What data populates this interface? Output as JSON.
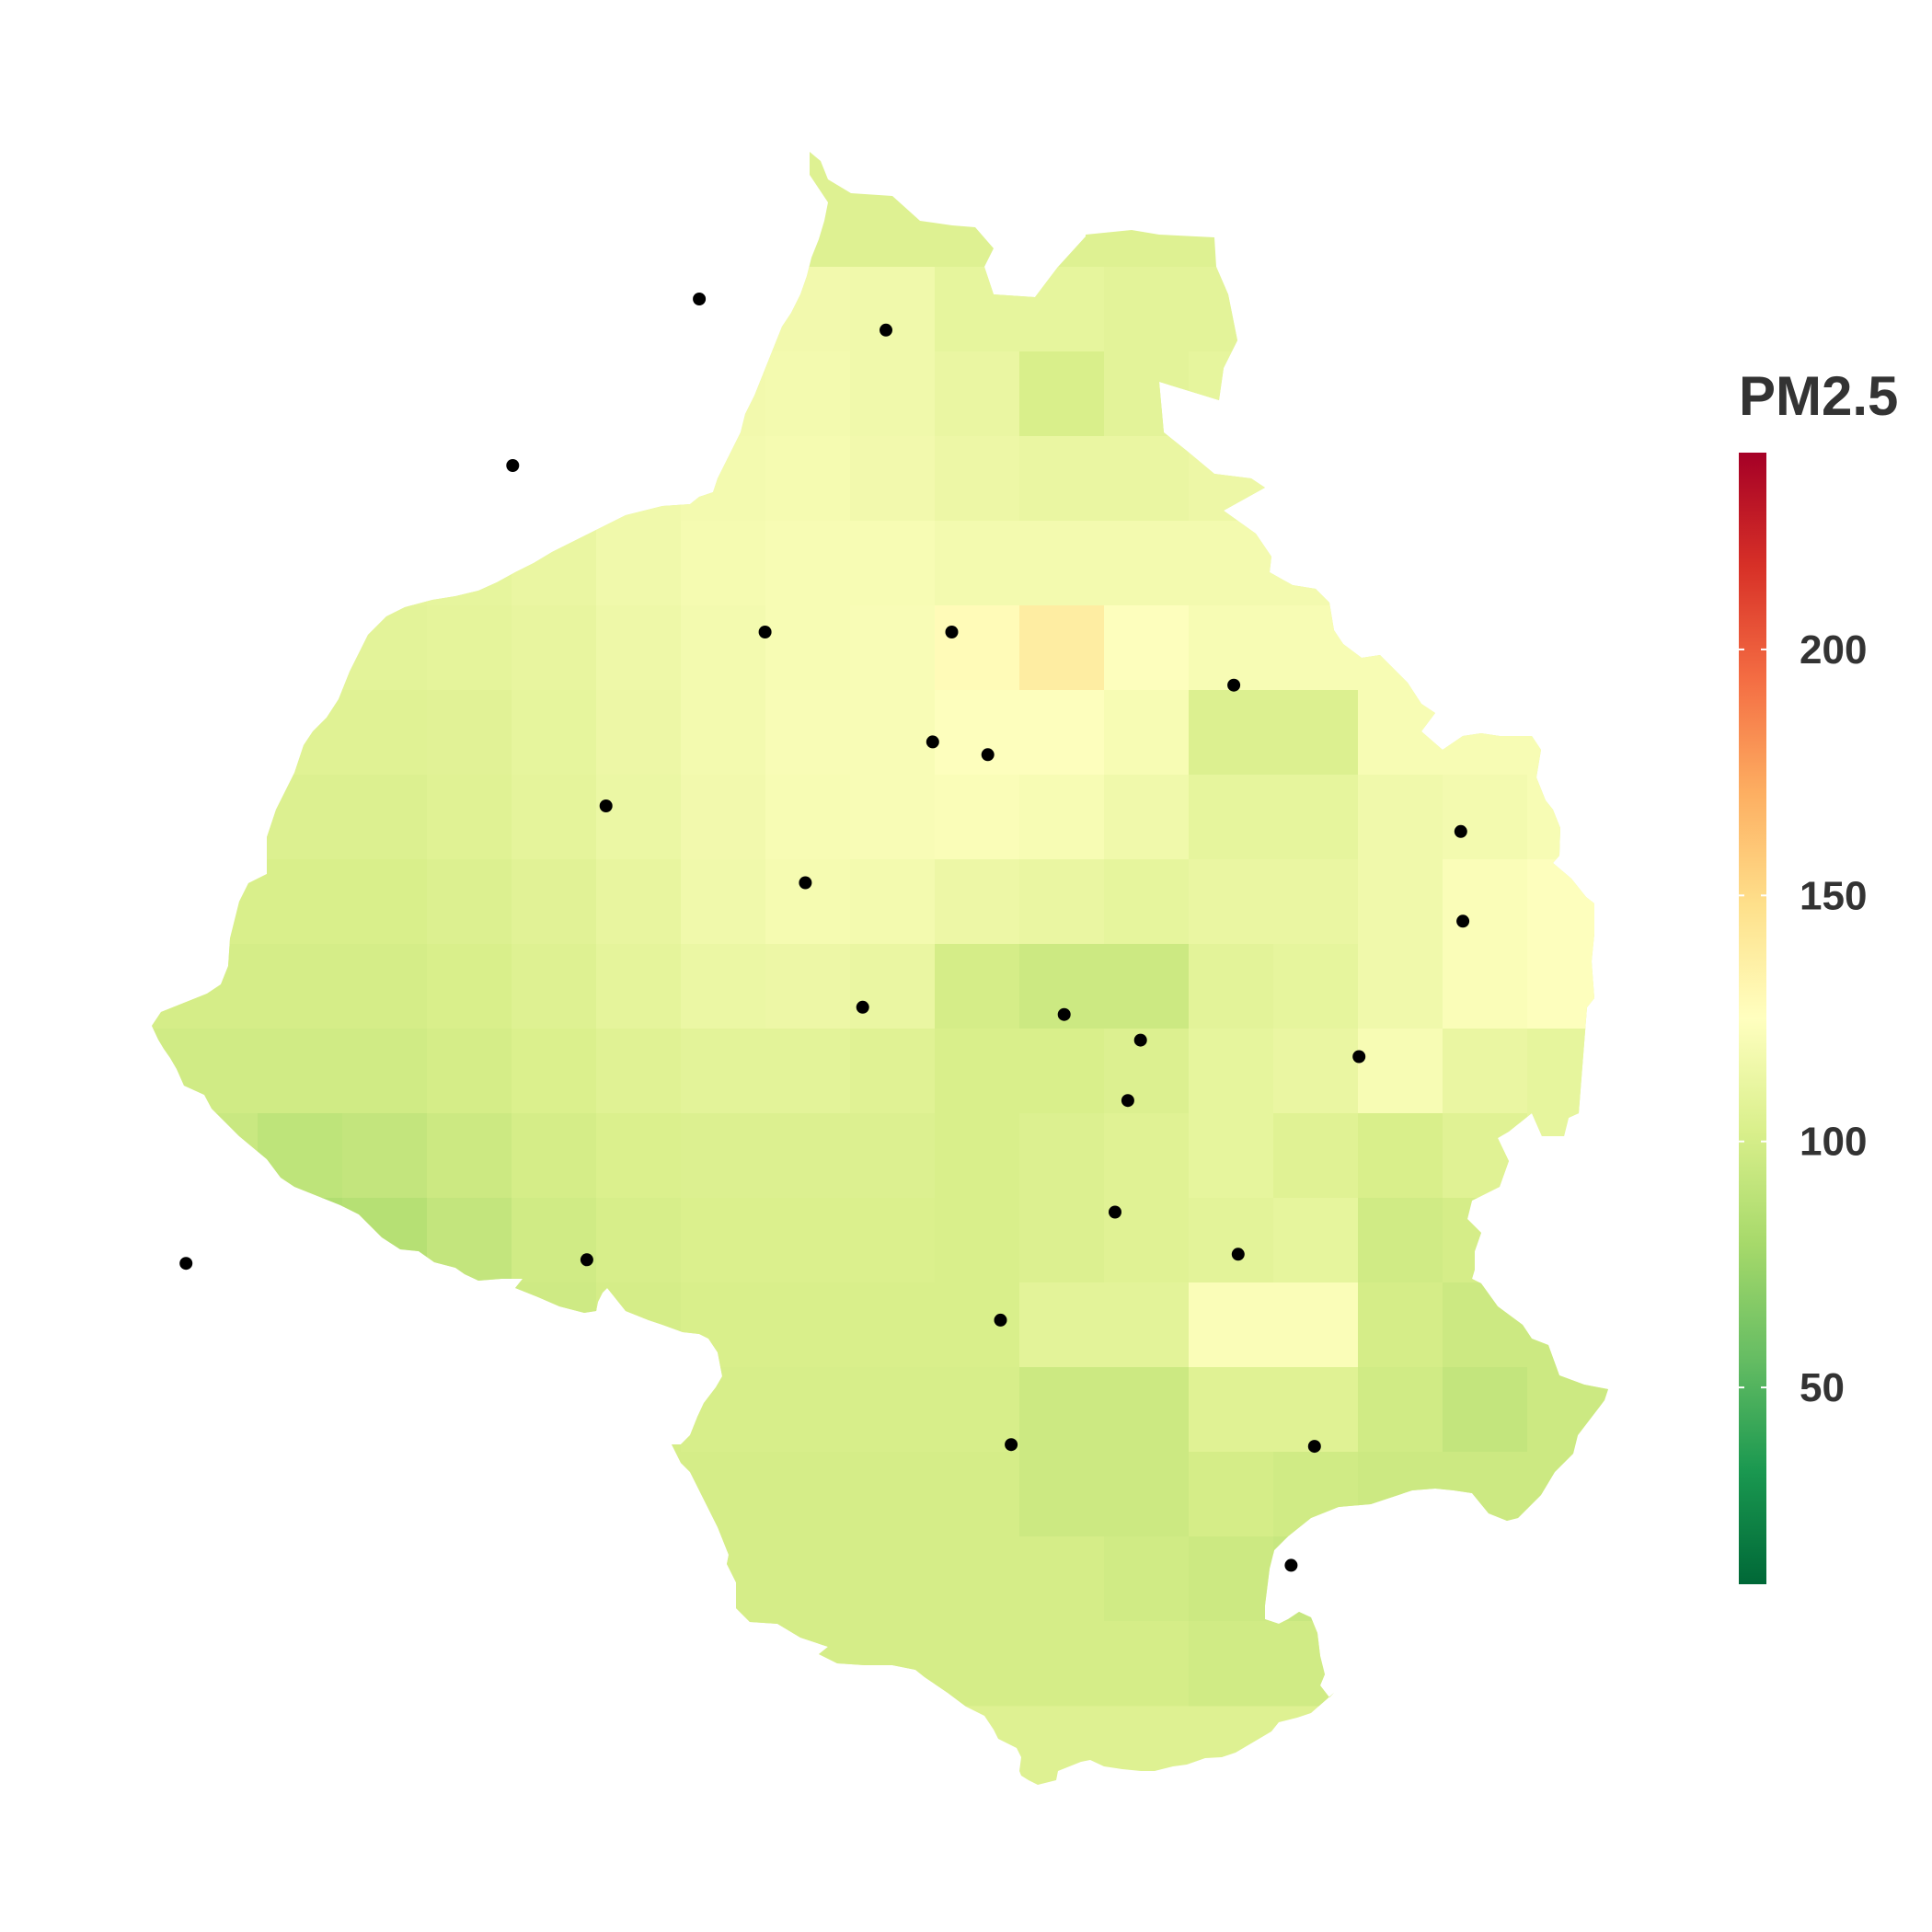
{
  "legend": {
    "title": "PM2.5",
    "min": 10,
    "max": 240,
    "ticks": [
      {
        "value": 50,
        "label": "50"
      },
      {
        "value": 100,
        "label": "100"
      },
      {
        "value": 150,
        "label": "150"
      },
      {
        "value": 200,
        "label": "200"
      }
    ],
    "gradient_stops": [
      {
        "offset": 0.0,
        "color": "#006837"
      },
      {
        "offset": 0.1,
        "color": "#1a9850"
      },
      {
        "offset": 0.2,
        "color": "#66bd63"
      },
      {
        "offset": 0.3,
        "color": "#a6d96a"
      },
      {
        "offset": 0.4,
        "color": "#d9ef8b"
      },
      {
        "offset": 0.5,
        "color": "#ffffbf"
      },
      {
        "offset": 0.6,
        "color": "#fee08b"
      },
      {
        "offset": 0.7,
        "color": "#fdae61"
      },
      {
        "offset": 0.8,
        "color": "#f46d43"
      },
      {
        "offset": 0.9,
        "color": "#d73027"
      },
      {
        "offset": 1.0,
        "color": "#a50026"
      }
    ]
  },
  "chart_data": {
    "type": "heatmap",
    "grid_rows": 17,
    "grid_cols": 18,
    "default_value": 105,
    "values": [
      [
        112,
        112,
        112,
        112,
        112,
        112,
        114,
        116,
        117,
        116,
        110,
        110,
        108,
        108,
        108,
        108,
        108,
        108
      ],
      [
        111,
        111,
        111,
        111,
        111,
        112,
        114,
        117,
        118,
        116,
        112,
        102,
        108,
        110,
        110,
        110,
        110,
        110
      ],
      [
        110,
        110,
        110,
        110,
        111,
        112,
        116,
        118,
        119,
        117,
        114,
        112,
        112,
        114,
        114,
        114,
        114,
        114
      ],
      [
        109,
        109,
        109,
        109,
        110,
        112,
        116,
        119,
        120,
        120,
        118,
        118,
        118,
        118,
        118,
        120,
        120,
        120
      ],
      [
        108,
        108,
        108,
        108,
        109,
        111,
        115,
        118,
        120,
        121,
        128,
        138,
        124,
        120,
        120,
        120,
        138,
        120
      ],
      [
        106,
        106,
        106,
        106,
        107,
        110,
        114,
        118,
        121,
        121,
        124,
        124,
        120,
        104,
        104,
        120,
        120,
        120
      ],
      [
        104,
        104,
        104,
        104,
        106,
        109,
        113,
        117,
        120,
        121,
        122,
        120,
        116,
        110,
        110,
        116,
        118,
        120
      ],
      [
        102,
        102,
        102,
        102,
        104,
        107,
        111,
        116,
        119,
        118,
        114,
        112,
        110,
        112,
        112,
        116,
        122,
        124
      ],
      [
        100,
        100,
        100,
        100,
        102,
        105,
        109,
        113,
        114,
        112,
        100,
        96,
        96,
        108,
        110,
        116,
        122,
        124
      ],
      [
        98,
        98,
        98,
        98,
        100,
        103,
        106,
        108,
        108,
        106,
        102,
        102,
        104,
        110,
        112,
        120,
        112,
        110
      ],
      [
        95,
        95,
        90,
        92,
        96,
        100,
        103,
        104,
        104,
        104,
        102,
        104,
        106,
        110,
        106,
        102,
        106,
        110
      ],
      [
        92,
        92,
        84,
        86,
        92,
        98,
        101,
        103,
        103,
        103,
        102,
        104,
        106,
        108,
        110,
        98,
        100,
        102
      ],
      [
        92,
        92,
        80,
        83,
        90,
        97,
        100,
        102,
        102,
        102,
        102,
        108,
        108,
        122,
        122,
        100,
        96,
        96
      ],
      [
        92,
        92,
        86,
        88,
        92,
        97,
        100,
        101,
        101,
        101,
        101,
        96,
        96,
        106,
        106,
        98,
        92,
        96
      ],
      [
        92,
        92,
        92,
        92,
        94,
        98,
        100,
        100,
        100,
        100,
        100,
        96,
        96,
        100,
        98,
        96,
        96,
        96
      ],
      [
        92,
        92,
        92,
        92,
        96,
        99,
        100,
        100,
        100,
        100,
        100,
        100,
        98,
        96,
        94,
        96,
        96,
        96
      ],
      [
        92,
        92,
        92,
        92,
        96,
        99,
        100,
        100,
        100,
        100,
        100,
        100,
        100,
        98,
        98,
        98,
        98,
        98
      ]
    ],
    "monitoring_stations": [
      {
        "lon": 77.095,
        "lat": 28.832
      },
      {
        "lon": 77.183,
        "lat": 28.815
      },
      {
        "lon": 77.007,
        "lat": 28.741
      },
      {
        "lon": 77.126,
        "lat": 28.65
      },
      {
        "lon": 77.214,
        "lat": 28.65
      },
      {
        "lon": 77.205,
        "lat": 28.59
      },
      {
        "lon": 77.231,
        "lat": 28.583
      },
      {
        "lon": 77.051,
        "lat": 28.555
      },
      {
        "lon": 77.145,
        "lat": 28.513
      },
      {
        "lon": 77.172,
        "lat": 28.445
      },
      {
        "lon": 77.267,
        "lat": 28.441
      },
      {
        "lon": 77.347,
        "lat": 28.621
      },
      {
        "lon": 77.454,
        "lat": 28.541
      },
      {
        "lon": 77.455,
        "lat": 28.492
      },
      {
        "lon": 77.303,
        "lat": 28.427
      },
      {
        "lon": 77.406,
        "lat": 28.418
      },
      {
        "lon": 77.297,
        "lat": 28.394
      },
      {
        "lon": 76.853,
        "lat": 28.305
      },
      {
        "lon": 77.042,
        "lat": 28.307
      },
      {
        "lon": 77.291,
        "lat": 28.333
      },
      {
        "lon": 77.349,
        "lat": 28.31
      },
      {
        "lon": 77.237,
        "lat": 28.274
      },
      {
        "lon": 77.242,
        "lat": 28.206
      },
      {
        "lon": 77.385,
        "lat": 28.205
      },
      {
        "lon": 77.374,
        "lat": 28.14
      }
    ]
  }
}
